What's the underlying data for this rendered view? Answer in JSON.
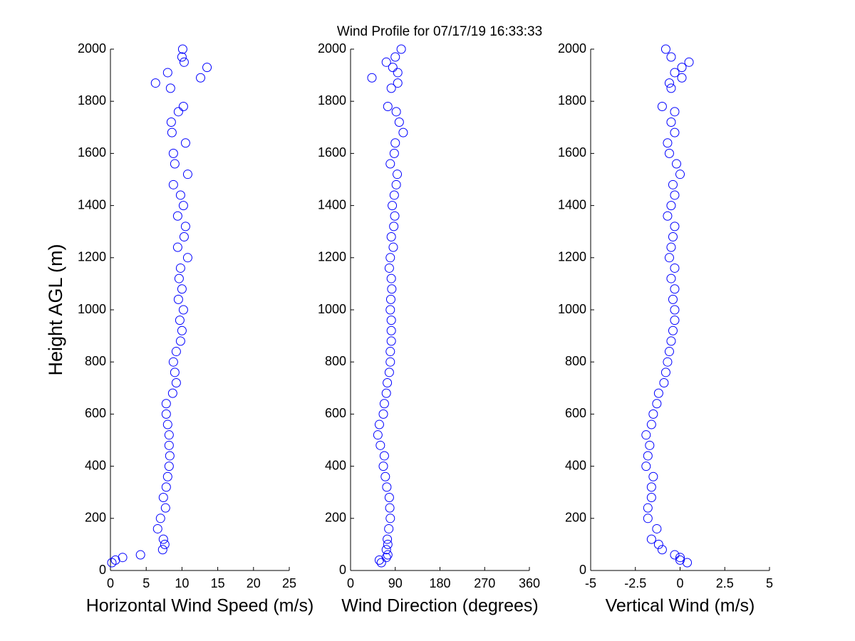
{
  "title": "Wind Profile for  07/17/19 16:33:33",
  "chart_data": [
    {
      "type": "scatter",
      "xlabel": "Horizontal Wind Speed (m/s)",
      "ylabel": "Height AGL (m)",
      "color": "#0000ff",
      "xlim": [
        0,
        25
      ],
      "xticks": [
        0,
        5,
        10,
        15,
        20,
        25
      ],
      "ylim": [
        0,
        2000
      ],
      "yticks": [
        0,
        200,
        400,
        600,
        800,
        1000,
        1200,
        1400,
        1600,
        1800,
        2000
      ],
      "x": [
        0.2,
        0.7,
        1.7,
        4.2,
        7.3,
        7.6,
        7.4,
        6.6,
        7,
        7.7,
        7.4,
        7.8,
        8,
        8.2,
        8.3,
        8.2,
        8.2,
        8,
        7.8,
        7.8,
        8.7,
        9.2,
        9,
        8.8,
        9.2,
        9.8,
        10,
        9.7,
        10.2,
        9.5,
        10,
        9.6,
        9.8,
        10.8,
        9.4,
        10.3,
        10.5,
        9.4,
        10.2,
        9.8,
        8.8,
        10.8,
        9,
        8.8,
        10.5,
        8.6,
        8.5,
        9.5,
        10.2,
        8.4,
        6.3,
        12.6,
        8,
        13.5,
        10.3,
        10,
        10.1
      ],
      "y": [
        30,
        40,
        50,
        60,
        80,
        100,
        120,
        160,
        200,
        240,
        280,
        320,
        360,
        400,
        440,
        480,
        520,
        560,
        600,
        640,
        680,
        720,
        760,
        800,
        840,
        880,
        920,
        960,
        1000,
        1040,
        1080,
        1120,
        1160,
        1200,
        1240,
        1280,
        1320,
        1360,
        1400,
        1440,
        1480,
        1520,
        1560,
        1600,
        1640,
        1680,
        1720,
        1760,
        1780,
        1850,
        1870,
        1890,
        1910,
        1930,
        1950,
        1970,
        2000
      ]
    },
    {
      "type": "scatter",
      "xlabel": "Wind Direction (degrees)",
      "color": "#0000ff",
      "xlim": [
        0,
        360
      ],
      "xticks": [
        0,
        90,
        180,
        270,
        360
      ],
      "ylim": [
        0,
        2000
      ],
      "yticks": [
        0,
        200,
        400,
        600,
        800,
        1000,
        1200,
        1400,
        1600,
        1800,
        2000
      ],
      "x": [
        62,
        58,
        72,
        75,
        72,
        75,
        74,
        77,
        80,
        79,
        78,
        73,
        70,
        66,
        68,
        60,
        55,
        58,
        66,
        68,
        72,
        74,
        78,
        80,
        80,
        82,
        82,
        82,
        80,
        81,
        83,
        82,
        78,
        80,
        86,
        82,
        87,
        89,
        84,
        88,
        92,
        94,
        80,
        88,
        90,
        106,
        98,
        92,
        75,
        82,
        95,
        43,
        95,
        85,
        72,
        90,
        102
      ],
      "y": [
        30,
        40,
        50,
        60,
        80,
        100,
        120,
        160,
        200,
        240,
        280,
        320,
        360,
        400,
        440,
        480,
        520,
        560,
        600,
        640,
        680,
        720,
        760,
        800,
        840,
        880,
        920,
        960,
        1000,
        1040,
        1080,
        1120,
        1160,
        1200,
        1240,
        1280,
        1320,
        1360,
        1400,
        1440,
        1480,
        1520,
        1560,
        1600,
        1640,
        1680,
        1720,
        1760,
        1780,
        1850,
        1870,
        1890,
        1910,
        1930,
        1950,
        1970,
        2000
      ]
    },
    {
      "type": "scatter",
      "xlabel": "Vertical Wind (m/s)",
      "color": "#0000ff",
      "xlim": [
        -5,
        5
      ],
      "xticks": [
        -5,
        -2.5,
        0,
        2.5,
        5
      ],
      "ylim": [
        0,
        2000
      ],
      "yticks": [
        0,
        200,
        400,
        600,
        800,
        1000,
        1200,
        1400,
        1600,
        1800,
        2000
      ],
      "x": [
        0.4,
        0,
        0,
        -0.3,
        -1,
        -1.2,
        -1.6,
        -1.3,
        -1.8,
        -1.8,
        -1.6,
        -1.6,
        -1.5,
        -1.9,
        -1.8,
        -1.7,
        -1.9,
        -1.6,
        -1.5,
        -1.3,
        -1.2,
        -0.9,
        -0.8,
        -0.7,
        -0.6,
        -0.5,
        -0.4,
        -0.3,
        -0.3,
        -0.4,
        -0.3,
        -0.5,
        -0.3,
        -0.6,
        -0.5,
        -0.4,
        -0.3,
        -0.7,
        -0.5,
        -0.3,
        -0.4,
        0,
        -0.2,
        -0.6,
        -0.7,
        -0.3,
        -0.5,
        -0.3,
        -1,
        -0.5,
        -0.6,
        0.1,
        -0.3,
        0.1,
        0.5,
        -0.5,
        -0.8
      ],
      "y": [
        30,
        40,
        50,
        60,
        80,
        100,
        120,
        160,
        200,
        240,
        280,
        320,
        360,
        400,
        440,
        480,
        520,
        560,
        600,
        640,
        680,
        720,
        760,
        800,
        840,
        880,
        920,
        960,
        1000,
        1040,
        1080,
        1120,
        1160,
        1200,
        1240,
        1280,
        1320,
        1360,
        1400,
        1440,
        1480,
        1520,
        1560,
        1600,
        1640,
        1680,
        1720,
        1760,
        1780,
        1850,
        1870,
        1890,
        1910,
        1930,
        1950,
        1970,
        2000
      ]
    }
  ]
}
